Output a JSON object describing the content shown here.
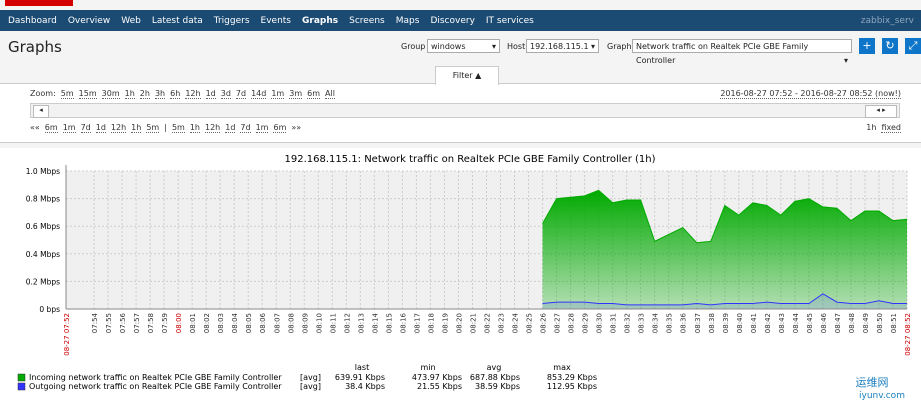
{
  "nav": {
    "items": [
      "Dashboard",
      "Overview",
      "Web",
      "Latest data",
      "Triggers",
      "Events",
      "Graphs",
      "Screens",
      "Maps",
      "Discovery",
      "IT services"
    ],
    "user": "zabbix_serv"
  },
  "header": {
    "title": "Graphs",
    "group_label": "Group",
    "group": "windows",
    "host_label": "Host",
    "host": "192.168.115.1",
    "graph_label": "Graph",
    "graph": "Network traffic on Realtek PCIe GBE Family Controller"
  },
  "filter": {
    "tab": "Filter ▲",
    "zoom_label": "Zoom:",
    "zoom": [
      "5m",
      "15m",
      "30m",
      "1h",
      "2h",
      "3h",
      "6h",
      "12h",
      "1d",
      "3d",
      "7d",
      "14d",
      "1m",
      "3m",
      "6m",
      "All"
    ],
    "period": "2016-08-27 07:52 - 2016-08-27 08:52 (now!)",
    "nav_back": "««",
    "nav_left": [
      "6m",
      "1m",
      "7d",
      "1d",
      "12h",
      "1h",
      "5m"
    ],
    "separator": "|",
    "nav_right": [
      "5m",
      "1h",
      "12h",
      "1d",
      "7d",
      "1m",
      "6m"
    ],
    "nav_forward": "»»",
    "length": "1h",
    "fixed": "fixed"
  },
  "chart_data": {
    "type": "area",
    "title": "192.168.115.1: Network traffic on Realtek PCIe GBE Family Controller (1h)",
    "x": [
      "08:26",
      "08:27",
      "08:28",
      "08:29",
      "08:30",
      "08:31",
      "08:32",
      "08:33",
      "08:34",
      "08:35",
      "08:36",
      "08:37",
      "08:38",
      "08:39",
      "08:40",
      "08:41",
      "08:42",
      "08:43",
      "08:44",
      "08:45",
      "08:46",
      "08:47",
      "08:48",
      "08:49",
      "08:50",
      "08:51",
      "08:52"
    ],
    "series": [
      {
        "name": "Incoming network traffic on Realtek PCIe GBE Family Controller",
        "color": "#00aa00",
        "values": [
          0.62,
          0.8,
          0.81,
          0.82,
          0.86,
          0.77,
          0.79,
          0.79,
          0.49,
          0.54,
          0.59,
          0.48,
          0.49,
          0.75,
          0.68,
          0.77,
          0.75,
          0.68,
          0.78,
          0.8,
          0.74,
          0.73,
          0.64,
          0.71,
          0.71,
          0.64,
          0.65
        ]
      },
      {
        "name": "Outgoing network traffic on Realtek PCIe GBE Family Controller",
        "color": "#3333ff",
        "values": [
          0.04,
          0.05,
          0.05,
          0.05,
          0.04,
          0.04,
          0.03,
          0.03,
          0.03,
          0.03,
          0.03,
          0.04,
          0.03,
          0.04,
          0.04,
          0.04,
          0.05,
          0.04,
          0.04,
          0.04,
          0.11,
          0.05,
          0.04,
          0.04,
          0.06,
          0.04,
          0.04
        ]
      }
    ],
    "xlim": [
      "07:52",
      "08:52"
    ],
    "xticks": [
      "08-27 07:52",
      "07:54",
      "07:55",
      "07:56",
      "07:57",
      "07:58",
      "07:59",
      "08:00",
      "08:01",
      "08:02",
      "08:03",
      "08:04",
      "08:05",
      "08:06",
      "08:07",
      "08:08",
      "08:09",
      "08:10",
      "08:11",
      "08:12",
      "08:13",
      "08:14",
      "08:15",
      "08:16",
      "08:17",
      "08:18",
      "08:19",
      "08:20",
      "08:21",
      "08:22",
      "08:23",
      "08:24",
      "08:25",
      "08:26",
      "08:27",
      "08:28",
      "08:29",
      "08:30",
      "08:31",
      "08:32",
      "08:33",
      "08:34",
      "08:35",
      "08:36",
      "08:37",
      "08:38",
      "08:39",
      "08:40",
      "08:41",
      "08:42",
      "08:43",
      "08:44",
      "08:45",
      "08:46",
      "08:47",
      "08:48",
      "08:49",
      "08:50",
      "08:51",
      "08-27 08:52"
    ],
    "ylim": [
      0,
      1
    ],
    "yticks": [
      {
        "value": 0,
        "label": "0 bps"
      },
      {
        "value": 0.2,
        "label": "0.2 Mbps"
      },
      {
        "value": 0.4,
        "label": "0.4 Mbps"
      },
      {
        "value": 0.6,
        "label": "0.6 Mbps"
      },
      {
        "value": 0.8,
        "label": "0.8 Mbps"
      },
      {
        "value": 1,
        "label": "1.0 Mbps"
      }
    ],
    "grid": true
  },
  "legend": {
    "function": "[avg]",
    "columns": [
      "last",
      "min",
      "avg",
      "max"
    ],
    "rows": [
      [
        "639.91 Kbps",
        "473.97 Kbps",
        "687.88 Kbps",
        "853.29 Kbps"
      ],
      [
        "38.4 Kbps",
        "21.55 Kbps",
        "38.59 Kbps",
        "112.95 Kbps"
      ]
    ]
  },
  "watermark": {
    "name": "运维网",
    "site": "iyunv.com"
  }
}
